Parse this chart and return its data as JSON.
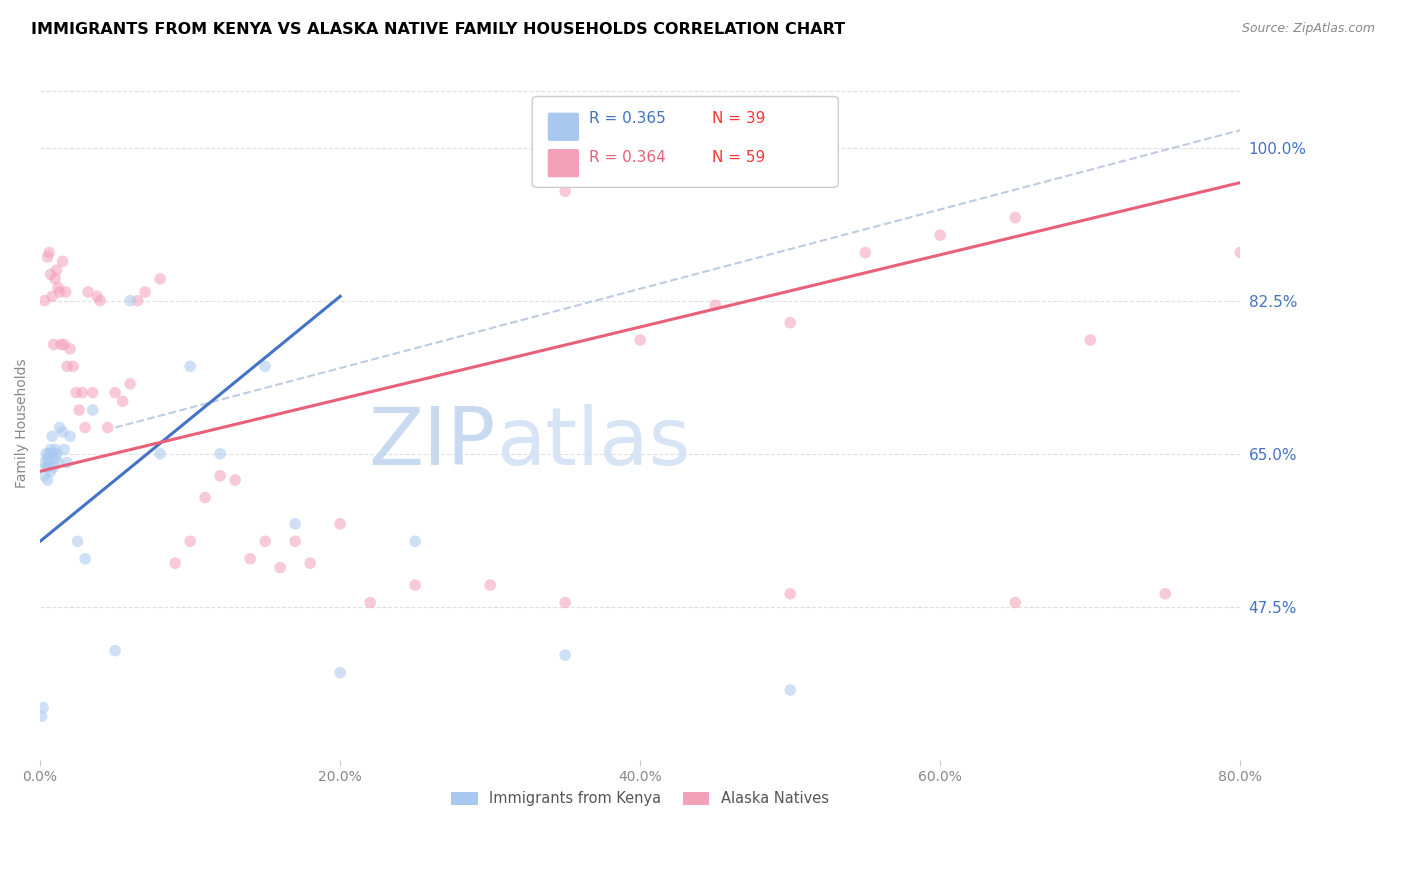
{
  "title": "IMMIGRANTS FROM KENYA VS ALASKA NATIVE FAMILY HOUSEHOLDS CORRELATION CHART",
  "source": "Source: ZipAtlas.com",
  "ylabel": "Family Households",
  "legend_blue_r": "R = 0.365",
  "legend_blue_n": "N = 39",
  "legend_pink_r": "R = 0.364",
  "legend_pink_n": "N = 59",
  "legend_blue_label": "Immigrants from Kenya",
  "legend_pink_label": "Alaska Natives",
  "blue_color": "#A8C8F0",
  "pink_color": "#F4A0B8",
  "blue_line_color": "#4472C4",
  "pink_line_color": "#E8607A",
  "blue_r_color": "#4472C4",
  "pink_r_color": "#E8607A",
  "n_color": "#FF3333",
  "watermark_zip_color": "#C8D8F0",
  "watermark_atlas_color": "#D8E8F8",
  "grid_color": "#E0E0E0",
  "ref_line_color": "#B0C0D8",
  "right_label_color": "#4472C4",
  "xlim": [
    0,
    80
  ],
  "ylim": [
    30,
    107
  ],
  "xticks": [
    0,
    20,
    40,
    60,
    80
  ],
  "ytick_positions": [
    47.5,
    65.0,
    82.5,
    100.0
  ],
  "ytick_labels": [
    "47.5%",
    "65.0%",
    "82.5%",
    "100.0%"
  ],
  "blue_trend_x": [
    0,
    20
  ],
  "blue_trend_y": [
    55.0,
    83.0
  ],
  "pink_trend_x": [
    0,
    80
  ],
  "pink_trend_y": [
    63.0,
    96.0
  ],
  "ref_line_x": [
    5,
    80
  ],
  "ref_line_y": [
    68,
    102
  ],
  "blue_scatter_x": [
    0.1,
    0.2,
    0.3,
    0.3,
    0.4,
    0.4,
    0.5,
    0.5,
    0.5,
    0.6,
    0.6,
    0.7,
    0.7,
    0.8,
    0.8,
    0.9,
    1.0,
    1.0,
    1.1,
    1.2,
    1.3,
    1.5,
    1.6,
    1.8,
    2.0,
    2.5,
    3.0,
    3.5,
    5.0,
    6.0,
    8.0,
    10.0,
    12.0,
    15.0,
    17.0,
    20.0,
    25.0,
    35.0,
    50.0
  ],
  "blue_scatter_y": [
    35.0,
    36.0,
    62.5,
    64.0,
    63.5,
    65.0,
    64.5,
    63.5,
    62.0,
    65.0,
    64.0,
    65.5,
    63.0,
    67.0,
    65.0,
    63.5,
    64.5,
    65.5,
    65.0,
    64.0,
    68.0,
    67.5,
    65.5,
    64.0,
    67.0,
    55.0,
    53.0,
    70.0,
    42.5,
    82.5,
    65.0,
    75.0,
    65.0,
    75.0,
    57.0,
    40.0,
    55.0,
    42.0,
    38.0
  ],
  "pink_scatter_x": [
    0.3,
    0.5,
    0.6,
    0.7,
    0.8,
    0.9,
    1.0,
    1.1,
    1.2,
    1.3,
    1.4,
    1.5,
    1.6,
    1.7,
    1.8,
    2.0,
    2.2,
    2.4,
    2.6,
    2.8,
    3.0,
    3.2,
    3.5,
    3.8,
    4.0,
    4.5,
    5.0,
    5.5,
    6.0,
    6.5,
    7.0,
    8.0,
    9.0,
    10.0,
    11.0,
    12.0,
    13.0,
    14.0,
    15.0,
    16.0,
    17.0,
    18.0,
    20.0,
    22.0,
    25.0,
    30.0,
    35.0,
    40.0,
    45.0,
    50.0,
    55.0,
    60.0,
    65.0,
    70.0,
    75.0,
    80.0,
    35.0,
    50.0,
    65.0
  ],
  "pink_scatter_y": [
    82.5,
    87.5,
    88.0,
    85.5,
    83.0,
    77.5,
    85.0,
    86.0,
    84.0,
    83.5,
    77.5,
    87.0,
    77.5,
    83.5,
    75.0,
    77.0,
    75.0,
    72.0,
    70.0,
    72.0,
    68.0,
    83.5,
    72.0,
    83.0,
    82.5,
    68.0,
    72.0,
    71.0,
    73.0,
    82.5,
    83.5,
    85.0,
    52.5,
    55.0,
    60.0,
    62.5,
    62.0,
    53.0,
    55.0,
    52.0,
    55.0,
    52.5,
    57.0,
    48.0,
    50.0,
    50.0,
    95.0,
    78.0,
    82.0,
    80.0,
    88.0,
    90.0,
    92.0,
    78.0,
    49.0,
    88.0,
    48.0,
    49.0,
    48.0
  ],
  "scatter_size": 70,
  "scatter_alpha": 0.55,
  "title_fontsize": 11.5,
  "axis_label_fontsize": 10,
  "tick_fontsize": 10,
  "source_fontsize": 9,
  "legend_fontsize": 11
}
